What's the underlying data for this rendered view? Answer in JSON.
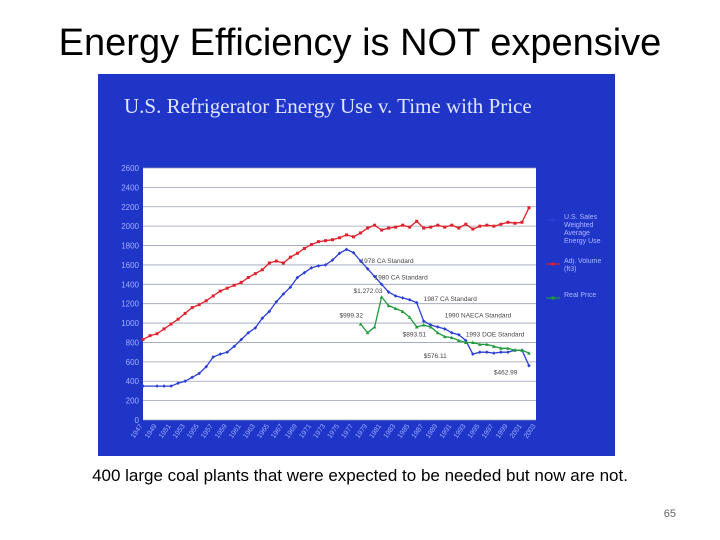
{
  "slide": {
    "title": "Energy Efficiency is NOT expensive",
    "caption": "400 large coal plants that were expected to be needed but now are not.",
    "page_number": "65"
  },
  "colors": {
    "panel": "#1f35c8",
    "plot": "#ffffff",
    "energy": "#2a3fd6",
    "volume": "#e0202a",
    "price": "#1f9a3a"
  },
  "chart_data": {
    "type": "line",
    "title": "U.S. Refrigerator Energy Use v. Time with Price",
    "y_ticks": [
      "0",
      "200",
      "400",
      "600",
      "800",
      "1000",
      "1200",
      "1400",
      "1600",
      "1800",
      "2000",
      "2200",
      "2400",
      "2600"
    ],
    "ylim": [
      0,
      2600
    ],
    "x_range": [
      1947,
      2003
    ],
    "x_tick_labels": [
      "1947",
      "1949",
      "1951",
      "1953",
      "1955",
      "1957",
      "1959",
      "1961",
      "1963",
      "1965",
      "1967",
      "1969",
      "1971",
      "1973",
      "1975",
      "1977",
      "1979",
      "1981",
      "1983",
      "1985",
      "1987",
      "1989",
      "1991",
      "1993",
      "1995",
      "1997",
      "1999",
      "2001",
      "2003"
    ],
    "series": [
      {
        "name": "U.S. Sales Weighted Average Energy Use",
        "color_key": "energy",
        "x": [
          1947,
          1949,
          1950,
          1951,
          1952,
          1953,
          1954,
          1955,
          1956,
          1957,
          1958,
          1959,
          1960,
          1961,
          1962,
          1963,
          1964,
          1965,
          1966,
          1967,
          1968,
          1969,
          1970,
          1971,
          1972,
          1973,
          1974,
          1975,
          1976,
          1977,
          1978,
          1979,
          1980,
          1981,
          1982,
          1983,
          1984,
          1985,
          1986,
          1987,
          1988,
          1989,
          1990,
          1991,
          1992,
          1993,
          1994,
          1995,
          1996,
          1997,
          1998,
          1999,
          2000,
          2001,
          2002
        ],
        "y": [
          350,
          350,
          350,
          350,
          380,
          400,
          440,
          480,
          550,
          650,
          680,
          700,
          760,
          830,
          900,
          950,
          1050,
          1120,
          1220,
          1300,
          1370,
          1470,
          1520,
          1570,
          1590,
          1600,
          1650,
          1720,
          1760,
          1726,
          1640,
          1560,
          1480,
          1400,
          1320,
          1280,
          1260,
          1240,
          1210,
          1020,
          980,
          960,
          940,
          900,
          880,
          820,
          680,
          700,
          700,
          690,
          700,
          700,
          720,
          720,
          560
        ]
      },
      {
        "name": "Adj. Volume (ft3)",
        "color_key": "volume",
        "x": [
          1947,
          1948,
          1949,
          1950,
          1951,
          1952,
          1953,
          1954,
          1955,
          1956,
          1957,
          1958,
          1959,
          1960,
          1961,
          1962,
          1963,
          1964,
          1965,
          1966,
          1967,
          1968,
          1969,
          1970,
          1971,
          1972,
          1973,
          1974,
          1975,
          1976,
          1977,
          1978,
          1979,
          1980,
          1981,
          1982,
          1983,
          1984,
          1985,
          1986,
          1987,
          1988,
          1989,
          1990,
          1991,
          1992,
          1993,
          1994,
          1995,
          1996,
          1997,
          1998,
          1999,
          2000,
          2001,
          2002
        ],
        "y": [
          830,
          870,
          890,
          940,
          990,
          1040,
          1100,
          1160,
          1190,
          1230,
          1280,
          1330,
          1360,
          1390,
          1420,
          1470,
          1510,
          1550,
          1620,
          1640,
          1620,
          1680,
          1720,
          1770,
          1810,
          1840,
          1850,
          1860,
          1880,
          1910,
          1890,
          1930,
          1980,
          2010,
          1960,
          1980,
          1990,
          2010,
          1990,
          2050,
          1980,
          1990,
          2010,
          1990,
          2010,
          1980,
          2020,
          1970,
          2000,
          2010,
          2000,
          2020,
          2040,
          2030,
          2040,
          2190
        ]
      },
      {
        "name": "Real Price",
        "color_key": "price",
        "x": [
          1978,
          1979,
          1980,
          1981,
          1982,
          1983,
          1984,
          1985,
          1986,
          1987,
          1988,
          1989,
          1990,
          1991,
          1992,
          1993,
          1994,
          1995,
          1996,
          1997,
          1998,
          1999,
          2000,
          2001,
          2002
        ],
        "y": [
          990,
          900,
          960,
          1270,
          1180,
          1150,
          1120,
          1060,
          960,
          980,
          960,
          900,
          860,
          850,
          820,
          800,
          800,
          780,
          780,
          760,
          740,
          740,
          720,
          720,
          690
        ]
      }
    ],
    "legend": [
      {
        "label": "U.S. Sales Weighted Average Energy Use",
        "color_key": "energy"
      },
      {
        "label": "Adj. Volume (ft3)",
        "color_key": "volume"
      },
      {
        "label": "Real Price",
        "color_key": "price"
      }
    ],
    "annotations": [
      {
        "text": "1978 CA Standard",
        "x": 1978,
        "y": 1620
      },
      {
        "text": "1980 CA Standard",
        "x": 1980,
        "y": 1450
      },
      {
        "text": "$1,272.03",
        "x": 1977,
        "y": 1310
      },
      {
        "text": "1987 CA Standard",
        "x": 1987,
        "y": 1230
      },
      {
        "text": "$999.32",
        "x": 1975,
        "y": 1060
      },
      {
        "text": "1990 NAECA Standard",
        "x": 1990,
        "y": 1060
      },
      {
        "text": "1993 DOE Standard",
        "x": 1993,
        "y": 860
      },
      {
        "text": "$893.51",
        "x": 1984,
        "y": 860
      },
      {
        "text": "$576.11",
        "x": 1987,
        "y": 640
      },
      {
        "text": "$462.99",
        "x": 1997,
        "y": 470
      }
    ],
    "legend_placement": "right",
    "grid": true
  }
}
